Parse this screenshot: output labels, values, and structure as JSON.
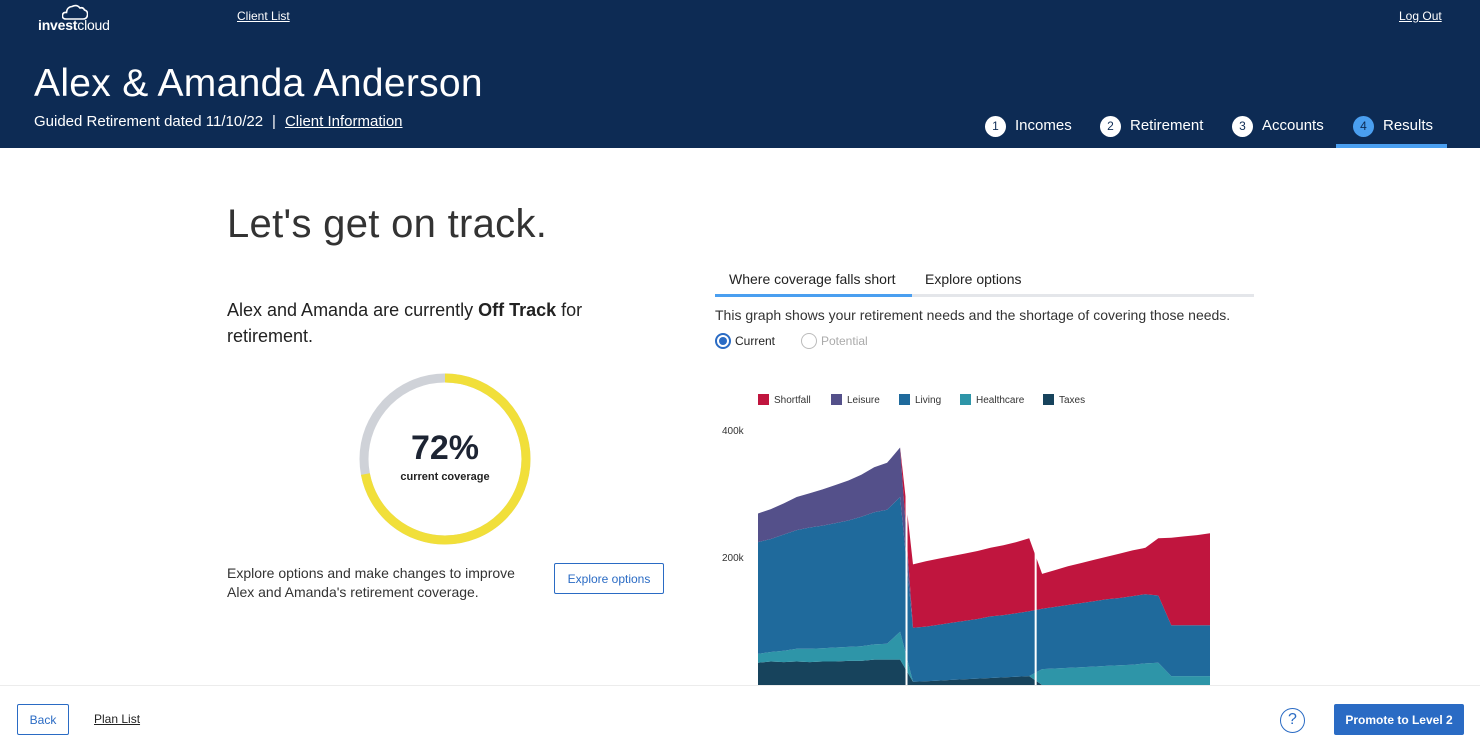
{
  "header": {
    "logo_text_regular_a": "invest",
    "logo_text_regular_b": "cloud",
    "client_list_link": "Client List",
    "logout_link": "Log Out",
    "client_name": "Alex & Amanda Anderson",
    "subtitle": "Guided Retirement dated 11/10/22",
    "separator": "|",
    "client_info_link": "Client Information",
    "steps": [
      {
        "number": "1",
        "label": "Incomes",
        "active": false
      },
      {
        "number": "2",
        "label": "Retirement",
        "active": false
      },
      {
        "number": "3",
        "label": "Accounts",
        "active": false
      },
      {
        "number": "4",
        "label": "Results",
        "active": true
      }
    ]
  },
  "main": {
    "headline": "Let's get on track.",
    "status_prefix": "Alex and Amanda are currently ",
    "status_bold": "Off Track",
    "status_suffix": " for retirement.",
    "coverage": {
      "value_text": "72%",
      "label": "current coverage",
      "fraction": 0.72
    },
    "explore_text": "Explore options and make changes to improve Alex and Amanda's retirement coverage.",
    "explore_button": "Explore options"
  },
  "chart_panel": {
    "tabs": [
      {
        "label": "Where coverage falls short",
        "active": true
      },
      {
        "label": "Explore options",
        "active": false
      }
    ],
    "description": "This graph shows your retirement needs and the shortage of covering those needs.",
    "radios": [
      {
        "label": "Current",
        "selected": true
      },
      {
        "label": "Potential",
        "selected": false
      }
    ]
  },
  "chart_data": {
    "type": "area",
    "stacked": true,
    "y_ticks": [
      "400k",
      "200k"
    ],
    "ylim": [
      0,
      400000
    ],
    "legend_position": "top-left",
    "legend": [
      {
        "name": "Shortfall",
        "color": "#c0153e"
      },
      {
        "name": "Leisure",
        "color": "#54508a"
      },
      {
        "name": "Living",
        "color": "#1f6a9c"
      },
      {
        "name": "Healthcare",
        "color": "#2e95a8"
      },
      {
        "name": "Taxes",
        "color": "#17435c"
      }
    ],
    "x": [
      0,
      1,
      2,
      3,
      4,
      5,
      6,
      7,
      8,
      9,
      10,
      11,
      12,
      13,
      14,
      15,
      16,
      17,
      18,
      19,
      20,
      21,
      22,
      23,
      24,
      25,
      26,
      27,
      28,
      29,
      30,
      31,
      32,
      33,
      34,
      35
    ],
    "series": [
      {
        "name": "Taxes",
        "values": [
          35000,
          37000,
          36000,
          37000,
          36000,
          37000,
          37000,
          38000,
          38000,
          40000,
          40000,
          40000,
          5000,
          6000,
          7000,
          8000,
          9000,
          10000,
          11000,
          12000,
          13000,
          14000,
          0,
          0,
          0,
          0,
          0,
          0,
          0,
          0,
          0,
          0,
          0,
          0,
          0,
          0
        ]
      },
      {
        "name": "Healthcare",
        "values": [
          14000,
          15000,
          18000,
          20000,
          21000,
          21000,
          22000,
          22000,
          23000,
          24000,
          25000,
          44000,
          0,
          0,
          0,
          0,
          0,
          0,
          0,
          0,
          0,
          0,
          25000,
          26000,
          27000,
          28000,
          29000,
          30000,
          31000,
          32000,
          34000,
          35000,
          14000,
          14000,
          14000,
          14000
        ]
      },
      {
        "name": "Living",
        "values": [
          176000,
          178000,
          183000,
          187000,
          191000,
          193000,
          196000,
          199000,
          204000,
          208000,
          211000,
          212000,
          85000,
          86000,
          88000,
          90000,
          92000,
          94000,
          97000,
          98000,
          100000,
          102000,
          95000,
          97000,
          99000,
          101000,
          103000,
          105000,
          106000,
          108000,
          109000,
          106000,
          80000,
          80000,
          80000,
          80000
        ]
      },
      {
        "name": "Leisure",
        "values": [
          45000,
          47000,
          49000,
          52000,
          54000,
          57000,
          60000,
          63000,
          66000,
          71000,
          74000,
          78000,
          0,
          0,
          0,
          0,
          0,
          0,
          0,
          0,
          0,
          0,
          0,
          0,
          0,
          0,
          0,
          0,
          0,
          0,
          0,
          0,
          0,
          0,
          0,
          0
        ]
      },
      {
        "name": "Shortfall",
        "values": [
          0,
          0,
          0,
          0,
          0,
          0,
          0,
          0,
          0,
          0,
          0,
          0,
          100000,
          103000,
          104000,
          105000,
          106000,
          107000,
          108000,
          110000,
          112000,
          115000,
          55000,
          58000,
          61000,
          63000,
          65000,
          67000,
          70000,
          72000,
          73000,
          90000,
          138000,
          140000,
          142000,
          145000
        ]
      }
    ]
  },
  "footer": {
    "back_button": "Back",
    "plan_list_link": "Plan List",
    "help_glyph": "?",
    "promote_button": "Promote to Level 2"
  }
}
